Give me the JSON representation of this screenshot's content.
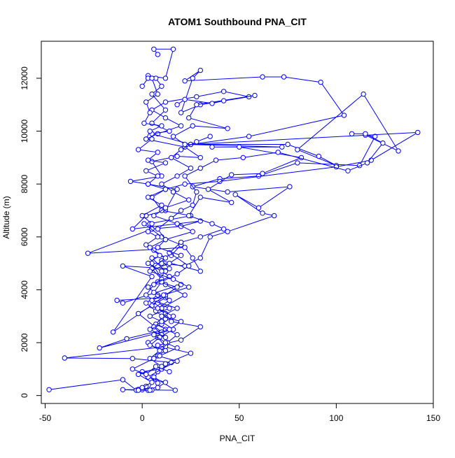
{
  "chart_data": {
    "type": "line",
    "title": "ATOM1 Southbound PNA_CIT",
    "xlabel": "PNA_CIT",
    "ylabel": "Altitude (m)",
    "xlim": [
      -52,
      150
    ],
    "ylim": [
      -300,
      13400
    ],
    "xticks": [
      -50,
      0,
      50,
      100,
      150
    ],
    "yticks": [
      0,
      2000,
      4000,
      6000,
      8000,
      10000,
      12000
    ],
    "grid": false,
    "legend": "none",
    "color": "#0000ff",
    "series": [
      {
        "points": [
          [
            -48,
            220
          ],
          [
            -10,
            600
          ],
          [
            -3,
            200
          ],
          [
            -10,
            220
          ],
          [
            0,
            220
          ],
          [
            5,
            210
          ],
          [
            17,
            200
          ],
          [
            6,
            700
          ],
          [
            8,
            470
          ],
          [
            0,
            900
          ],
          [
            10,
            1000
          ],
          [
            15,
            1250
          ],
          [
            -5,
            1400
          ],
          [
            -40,
            1420
          ],
          [
            12,
            1850
          ],
          [
            8,
            2200
          ],
          [
            12,
            2500
          ],
          [
            -8,
            2150
          ],
          [
            -22,
            1800
          ],
          [
            10,
            2400
          ],
          [
            -2,
            3100
          ],
          [
            12,
            3700
          ],
          [
            -13,
            3600
          ],
          [
            -10,
            3500
          ],
          [
            20,
            4200
          ],
          [
            -15,
            2400
          ],
          [
            5,
            4500
          ],
          [
            -10,
            4900
          ],
          [
            14,
            4800
          ],
          [
            10,
            5100
          ],
          [
            30,
            4700
          ],
          [
            26,
            5200
          ],
          [
            22,
            5600
          ],
          [
            -28,
            5380
          ],
          [
            5,
            6300
          ],
          [
            20,
            6400
          ],
          [
            30,
            6600
          ],
          [
            -5,
            6300
          ],
          [
            2,
            6800
          ],
          [
            12,
            7000
          ],
          [
            18,
            7800
          ],
          [
            3,
            8000
          ],
          [
            -6,
            8100
          ],
          [
            10,
            8300
          ],
          [
            5,
            8850
          ],
          [
            18,
            9050
          ],
          [
            30,
            9000
          ],
          [
            22,
            9400
          ],
          [
            2,
            9700
          ],
          [
            8,
            9900
          ],
          [
            20,
            10200
          ],
          [
            12,
            10500
          ],
          [
            5,
            10800
          ],
          [
            12,
            11100
          ],
          [
            28,
            11300
          ],
          [
            42,
            11500
          ],
          [
            55,
            11300
          ],
          [
            30,
            11000
          ],
          [
            20,
            10700
          ],
          [
            26,
            12000
          ],
          [
            30,
            12300
          ],
          [
            22,
            11900
          ],
          [
            62,
            12050
          ],
          [
            73,
            12050
          ],
          [
            92,
            11850
          ],
          [
            104,
            10600
          ],
          [
            55,
            9800
          ],
          [
            25,
            9500
          ],
          [
            75,
            9500
          ],
          [
            91,
            9050
          ],
          [
            100,
            8700
          ],
          [
            80,
            9300
          ],
          [
            114,
            11400
          ],
          [
            132,
            9250
          ],
          [
            115,
            9850
          ],
          [
            120,
            9800
          ],
          [
            112,
            8700
          ],
          [
            80,
            8800
          ],
          [
            60,
            8300
          ],
          [
            40,
            8200
          ],
          [
            26,
            7900
          ],
          [
            44,
            7700
          ],
          [
            76,
            7900
          ],
          [
            60,
            7100
          ],
          [
            48,
            7600
          ],
          [
            62,
            6900
          ],
          [
            68,
            6800
          ],
          [
            44,
            6200
          ],
          [
            35,
            6000
          ],
          [
            30,
            5200
          ],
          [
            22,
            4900
          ],
          [
            10,
            5000
          ],
          [
            5,
            5000
          ],
          [
            12,
            4200
          ],
          [
            22,
            3800
          ],
          [
            10,
            3300
          ],
          [
            15,
            2800
          ],
          [
            30,
            2600
          ],
          [
            20,
            2100
          ],
          [
            8,
            1900
          ],
          [
            25,
            1600
          ],
          [
            12,
            1200
          ],
          [
            8,
            900
          ],
          [
            3,
            200
          ]
        ]
      },
      {
        "points": [
          [
            8,
            12900
          ],
          [
            6,
            13100
          ],
          [
            16,
            13100
          ],
          [
            12,
            12000
          ],
          [
            3,
            12100
          ],
          [
            7,
            12000
          ],
          [
            10,
            11700
          ],
          [
            5,
            11400
          ],
          [
            12,
            10800
          ],
          [
            5,
            10300
          ],
          [
            14,
            10000
          ],
          [
            5,
            9900
          ],
          [
            25,
            9500
          ],
          [
            142,
            9950
          ],
          [
            118,
            8900
          ],
          [
            100,
            8650
          ],
          [
            40,
            8100
          ],
          [
            22,
            8000
          ],
          [
            12,
            7800
          ],
          [
            5,
            7500
          ],
          [
            10,
            7000
          ],
          [
            25,
            6800
          ],
          [
            4,
            6500
          ],
          [
            1,
            6500
          ],
          [
            10,
            6000
          ],
          [
            20,
            5700
          ],
          [
            15,
            5300
          ],
          [
            5,
            5200
          ],
          [
            12,
            4700
          ],
          [
            8,
            4300
          ],
          [
            18,
            4100
          ],
          [
            12,
            3800
          ],
          [
            5,
            3400
          ],
          [
            12,
            3100
          ],
          [
            7,
            2700
          ],
          [
            18,
            2300
          ],
          [
            13,
            2000
          ],
          [
            8,
            1500
          ],
          [
            18,
            1300
          ],
          [
            10,
            1000
          ],
          [
            3,
            700
          ],
          [
            12,
            500
          ],
          [
            8,
            300
          ],
          [
            -2,
            230
          ],
          [
            2,
            350
          ],
          [
            -2,
            200
          ],
          [
            4,
            200
          ]
        ]
      },
      {
        "points": [
          [
            0,
            11700
          ],
          [
            3,
            12000
          ],
          [
            5,
            12000
          ],
          [
            8,
            11400
          ],
          [
            2,
            11100
          ],
          [
            4,
            10700
          ],
          [
            1,
            10300
          ],
          [
            10,
            10200
          ],
          [
            4,
            10000
          ],
          [
            2,
            9700
          ],
          [
            5,
            9700
          ],
          [
            -2,
            9300
          ],
          [
            8,
            9200
          ],
          [
            3,
            8900
          ],
          [
            12,
            8800
          ],
          [
            2,
            8500
          ],
          [
            8,
            8300
          ],
          [
            3,
            8000
          ],
          [
            12,
            7800
          ],
          [
            3,
            7500
          ],
          [
            10,
            7200
          ],
          [
            0,
            6800
          ],
          [
            5,
            6500
          ],
          [
            3,
            6200
          ],
          [
            8,
            6000
          ],
          [
            2,
            5700
          ],
          [
            6,
            5500
          ],
          [
            12,
            5200
          ],
          [
            5,
            4800
          ],
          [
            10,
            4400
          ],
          [
            3,
            4100
          ],
          [
            8,
            3800
          ],
          [
            2,
            3500
          ],
          [
            7,
            3200
          ],
          [
            12,
            2900
          ],
          [
            6,
            2600
          ],
          [
            10,
            2300
          ],
          [
            3,
            2000
          ],
          [
            9,
            1700
          ],
          [
            4,
            1400
          ],
          [
            10,
            1100
          ],
          [
            -2,
            800
          ],
          [
            5,
            500
          ],
          [
            0,
            300
          ]
        ]
      },
      {
        "points": [
          [
            18,
            11000
          ],
          [
            22,
            11200
          ],
          [
            36,
            11050
          ],
          [
            42,
            11150
          ],
          [
            58,
            11350
          ],
          [
            28,
            11000
          ],
          [
            24,
            10500
          ],
          [
            44,
            10100
          ],
          [
            26,
            10200
          ],
          [
            16,
            9800
          ],
          [
            22,
            9500
          ],
          [
            72,
            9400
          ],
          [
            36,
            9400
          ],
          [
            50,
            9400
          ],
          [
            82,
            9000
          ],
          [
            62,
            8400
          ],
          [
            46,
            8350
          ],
          [
            34,
            7800
          ],
          [
            46,
            7300
          ],
          [
            30,
            7500
          ],
          [
            24,
            6800
          ],
          [
            36,
            6500
          ],
          [
            42,
            6300
          ],
          [
            30,
            6000
          ],
          [
            20,
            5800
          ],
          [
            14,
            5400
          ],
          [
            24,
            4900
          ],
          [
            18,
            4600
          ],
          [
            10,
            4300
          ],
          [
            6,
            3900
          ],
          [
            14,
            3600
          ],
          [
            8,
            3300
          ],
          [
            16,
            3000
          ],
          [
            10,
            2700
          ],
          [
            4,
            2500
          ],
          [
            12,
            2200
          ]
        ]
      },
      {
        "points": [
          [
            108,
            9900
          ],
          [
            115,
            9900
          ],
          [
            124,
            9550
          ],
          [
            116,
            8800
          ],
          [
            106,
            8500
          ],
          [
            70,
            9200
          ],
          [
            52,
            9000
          ],
          [
            38,
            8900
          ],
          [
            30,
            8600
          ],
          [
            22,
            8300
          ],
          [
            28,
            7700
          ],
          [
            26,
            7200
          ],
          [
            20,
            7000
          ],
          [
            15,
            6700
          ],
          [
            8,
            6300
          ],
          [
            12,
            5900
          ],
          [
            4,
            5600
          ],
          [
            9,
            5300
          ],
          [
            3,
            5000
          ],
          [
            10,
            4700
          ],
          [
            14,
            4500
          ],
          [
            6,
            4200
          ],
          [
            2,
            3800
          ],
          [
            8,
            3500
          ],
          [
            14,
            3300
          ],
          [
            4,
            3000
          ],
          [
            10,
            2800
          ],
          [
            16,
            2500
          ],
          [
            9,
            2200
          ],
          [
            4,
            1900
          ],
          [
            12,
            1700
          ],
          [
            6,
            1400
          ],
          [
            -5,
            1000
          ],
          [
            2,
            800
          ],
          [
            7,
            1100
          ],
          [
            14,
            900
          ]
        ]
      },
      {
        "points": [
          [
            35,
            9800
          ],
          [
            28,
            9600
          ],
          [
            20,
            9300
          ],
          [
            15,
            9000
          ],
          [
            25,
            8600
          ],
          [
            18,
            8300
          ],
          [
            10,
            8000
          ],
          [
            16,
            7700
          ],
          [
            24,
            7400
          ],
          [
            12,
            7100
          ],
          [
            6,
            6800
          ],
          [
            18,
            6500
          ],
          [
            26,
            6200
          ],
          [
            12,
            5900
          ],
          [
            8,
            5600
          ],
          [
            20,
            5300
          ],
          [
            14,
            5000
          ],
          [
            4,
            4700
          ],
          [
            16,
            4400
          ],
          [
            24,
            4100
          ],
          [
            11,
            3800
          ],
          [
            5,
            3600
          ],
          [
            18,
            3300
          ],
          [
            10,
            3000
          ],
          [
            20,
            2800
          ],
          [
            14,
            2500
          ],
          [
            6,
            2300
          ],
          [
            12,
            2000
          ],
          [
            18,
            1800
          ],
          [
            9,
            1500
          ]
        ]
      }
    ]
  }
}
